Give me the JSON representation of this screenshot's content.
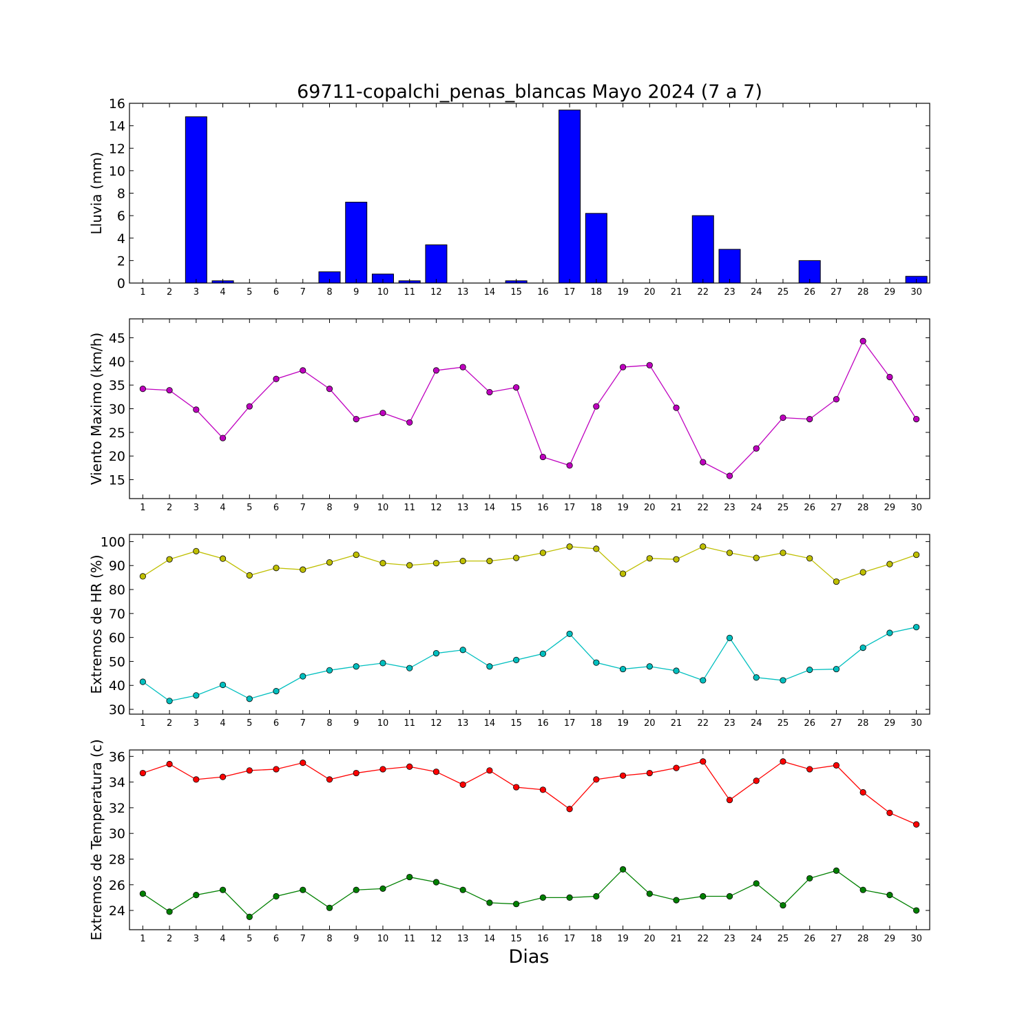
{
  "title": "69711-copalchi_penas_blancas Mayo 2024  (7 a 7)",
  "xlabel": "Dias",
  "days": [
    1,
    2,
    3,
    4,
    5,
    6,
    7,
    8,
    9,
    10,
    11,
    12,
    13,
    14,
    15,
    16,
    17,
    18,
    19,
    20,
    21,
    22,
    23,
    24,
    25,
    26,
    27,
    28,
    29,
    30
  ],
  "chart_data": [
    {
      "type": "bar",
      "ylabel": "Lluvia (mm)",
      "ylim": [
        0,
        16
      ],
      "yticks": [
        0,
        2,
        4,
        6,
        8,
        10,
        12,
        14,
        16
      ],
      "color": "#0000ff",
      "series": [
        {
          "values": [
            0,
            0,
            14.8,
            0.2,
            0,
            0,
            0,
            1.0,
            7.2,
            0.8,
            0.2,
            3.4,
            0,
            0,
            0.2,
            0,
            15.4,
            6.2,
            0,
            0,
            0,
            6.0,
            3.0,
            0,
            0,
            2.0,
            0,
            0,
            0,
            0.6
          ]
        }
      ]
    },
    {
      "type": "line",
      "ylabel": "Viento Maximo (km/h)",
      "ylim": [
        11,
        49
      ],
      "yticks": [
        15,
        20,
        25,
        30,
        35,
        40,
        45
      ],
      "series": [
        {
          "color": "#bf00bf",
          "values": [
            34.2,
            33.9,
            29.8,
            23.8,
            30.5,
            36.3,
            38.1,
            34.2,
            27.8,
            29.1,
            27.1,
            38.1,
            38.8,
            33.5,
            34.5,
            19.8,
            18.0,
            30.5,
            38.8,
            39.2,
            30.2,
            18.7,
            15.8,
            21.6,
            28.1,
            27.8,
            32.0,
            44.3,
            36.7,
            27.8
          ]
        }
      ]
    },
    {
      "type": "line",
      "ylabel": "Extremos de HR (%)",
      "ylim": [
        28,
        103
      ],
      "yticks": [
        30,
        40,
        50,
        60,
        70,
        80,
        90,
        100
      ],
      "series": [
        {
          "color": "#bfbf00",
          "values": [
            85.5,
            92.6,
            96.0,
            92.9,
            85.9,
            89.0,
            88.3,
            91.3,
            94.5,
            91.0,
            90.1,
            91.0,
            91.9,
            91.9,
            93.2,
            95.3,
            97.9,
            97.0,
            86.6,
            93.0,
            92.6,
            97.9,
            95.3,
            93.2,
            95.3,
            93.0,
            83.3,
            87.2,
            90.6,
            94.5
          ]
        },
        {
          "color": "#00bfbf",
          "values": [
            41.5,
            33.5,
            35.8,
            40.2,
            34.4,
            37.6,
            43.8,
            46.3,
            47.9,
            49.3,
            47.2,
            53.4,
            54.8,
            47.9,
            50.6,
            53.2,
            61.5,
            49.5,
            46.8,
            47.9,
            46.1,
            42.1,
            59.8,
            43.3,
            42.1,
            46.5,
            46.8,
            55.7,
            61.9,
            64.3
          ]
        }
      ]
    },
    {
      "type": "line",
      "ylabel": "Extremos de Temperatura (c)",
      "ylim": [
        22.5,
        36.5
      ],
      "yticks": [
        24,
        26,
        28,
        30,
        32,
        34,
        36
      ],
      "series": [
        {
          "color": "#ff0000",
          "values": [
            34.7,
            35.4,
            34.2,
            34.4,
            34.9,
            35.0,
            35.5,
            34.2,
            34.7,
            35.0,
            35.2,
            34.8,
            33.8,
            34.9,
            33.6,
            33.4,
            31.9,
            34.2,
            34.5,
            34.7,
            35.1,
            35.6,
            32.6,
            34.1,
            35.6,
            35.0,
            35.3,
            33.2,
            31.6,
            30.7
          ]
        },
        {
          "color": "#008000",
          "values": [
            25.3,
            23.9,
            25.2,
            25.6,
            23.5,
            25.1,
            25.6,
            24.2,
            25.6,
            25.7,
            26.6,
            26.2,
            25.6,
            24.6,
            24.5,
            25.0,
            25.0,
            25.1,
            27.2,
            25.3,
            24.8,
            25.1,
            25.1,
            26.1,
            24.4,
            26.5,
            27.1,
            25.6,
            25.2,
            24.0
          ]
        }
      ]
    }
  ]
}
